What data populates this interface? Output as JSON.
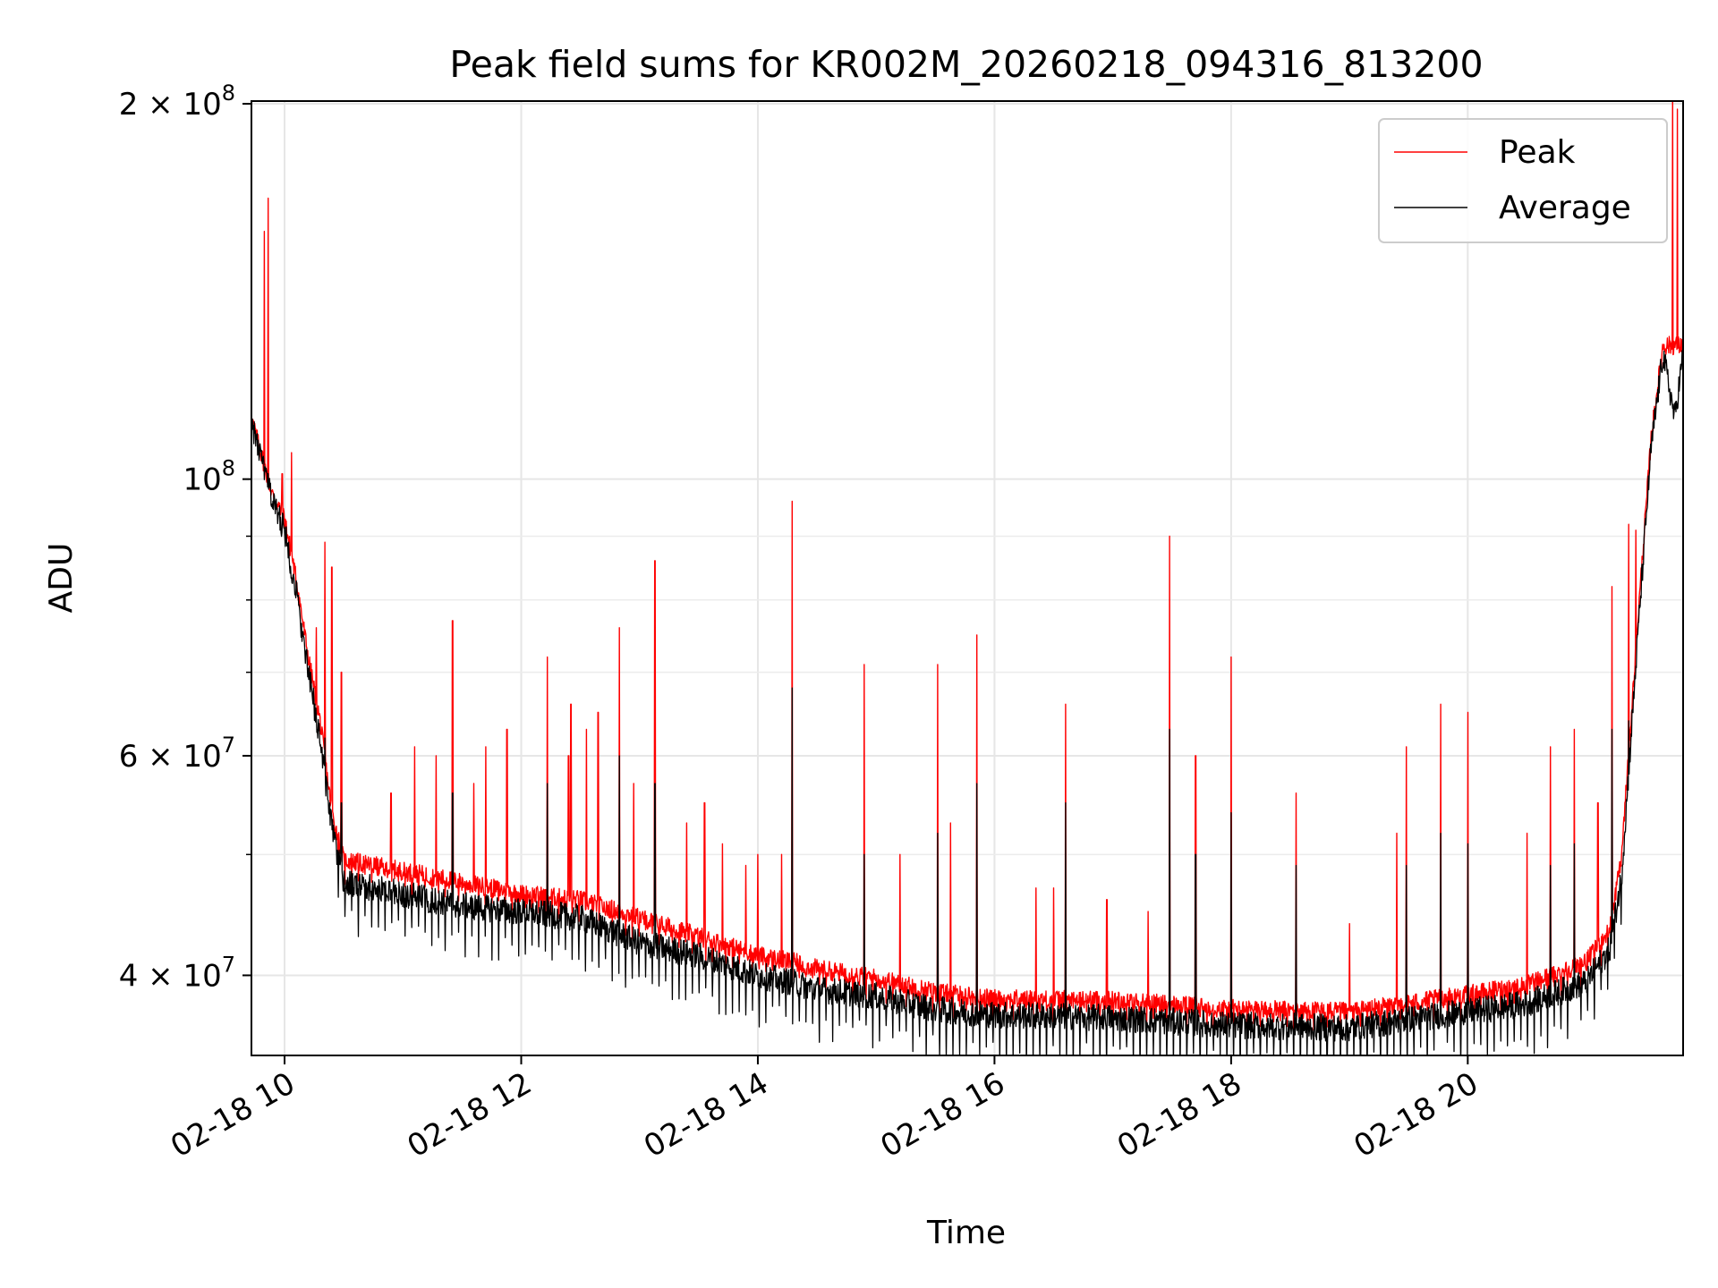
{
  "chart_data": {
    "type": "line",
    "title": "Peak field sums for KR002M_20260218_094316_813200",
    "xlabel": "Time",
    "ylabel": "ADU",
    "yscale": "log",
    "ylim": [
      34500000,
      201000000
    ],
    "xlim_hours": [
      9.72,
      21.82
    ],
    "grid": true,
    "legend_position": "top-right",
    "x_ticks": [
      {
        "hour": 10,
        "label": "02-18 10"
      },
      {
        "hour": 12,
        "label": "02-18 12"
      },
      {
        "hour": 14,
        "label": "02-18 14"
      },
      {
        "hour": 16,
        "label": "02-18 16"
      },
      {
        "hour": 18,
        "label": "02-18 18"
      },
      {
        "hour": 20,
        "label": "02-18 20"
      }
    ],
    "y_ticks": [
      {
        "value": 200000000,
        "base": "2 × 10",
        "exp": "8"
      },
      {
        "value": 100000000,
        "base": "10",
        "exp": "8"
      },
      {
        "value": 60000000,
        "base": "6 × 10",
        "exp": "7"
      },
      {
        "value": 40000000,
        "base": "4 × 10",
        "exp": "7"
      }
    ],
    "y_minor_ticks": [
      50000000,
      70000000,
      80000000,
      90000000
    ],
    "series": [
      {
        "name": "Peak",
        "color": "#ff0000",
        "baseline": [
          [
            9.72,
            112000000
          ],
          [
            9.8,
            105000000
          ],
          [
            9.9,
            97000000
          ],
          [
            10.0,
            93000000
          ],
          [
            10.1,
            83000000
          ],
          [
            10.2,
            72000000
          ],
          [
            10.3,
            64000000
          ],
          [
            10.4,
            54000000
          ],
          [
            10.5,
            49500000
          ],
          [
            11.0,
            48500000
          ],
          [
            11.5,
            47500000
          ],
          [
            12.0,
            46500000
          ],
          [
            12.5,
            46000000
          ],
          [
            13.0,
            44500000
          ],
          [
            13.5,
            43000000
          ],
          [
            14.0,
            41500000
          ],
          [
            14.3,
            41000000
          ],
          [
            14.5,
            40500000
          ],
          [
            15.0,
            39800000
          ],
          [
            15.5,
            38800000
          ],
          [
            16.0,
            38300000
          ],
          [
            17.0,
            38200000
          ],
          [
            18.0,
            37600000
          ],
          [
            19.0,
            37400000
          ],
          [
            19.5,
            38000000
          ],
          [
            20.0,
            38600000
          ],
          [
            20.5,
            39300000
          ],
          [
            21.0,
            41000000
          ],
          [
            21.2,
            43500000
          ],
          [
            21.3,
            50000000
          ],
          [
            21.45,
            80000000
          ],
          [
            21.55,
            108000000
          ],
          [
            21.65,
            128000000
          ],
          [
            21.75,
            128000000
          ],
          [
            21.82,
            128000000
          ]
        ],
        "spikes": [
          [
            9.83,
            158000000
          ],
          [
            9.86,
            168000000
          ],
          [
            9.98,
            101000000
          ],
          [
            10.06,
            105000000
          ],
          [
            10.27,
            76000000
          ],
          [
            10.34,
            89000000
          ],
          [
            10.4,
            85000000
          ],
          [
            10.48,
            70000000
          ],
          [
            10.9,
            56000000
          ],
          [
            11.1,
            61000000
          ],
          [
            11.28,
            60000000
          ],
          [
            11.42,
            77000000
          ],
          [
            11.6,
            57000000
          ],
          [
            11.7,
            61000000
          ],
          [
            11.88,
            63000000
          ],
          [
            12.22,
            72000000
          ],
          [
            12.4,
            60000000
          ],
          [
            12.42,
            66000000
          ],
          [
            12.55,
            63000000
          ],
          [
            12.65,
            65000000
          ],
          [
            12.83,
            76000000
          ],
          [
            12.95,
            57000000
          ],
          [
            13.13,
            86000000
          ],
          [
            13.4,
            53000000
          ],
          [
            13.55,
            55000000
          ],
          [
            13.7,
            51000000
          ],
          [
            13.9,
            49000000
          ],
          [
            14.0,
            50000000
          ],
          [
            14.2,
            50000000
          ],
          [
            14.29,
            96000000
          ],
          [
            14.9,
            71000000
          ],
          [
            15.2,
            50000000
          ],
          [
            15.52,
            71000000
          ],
          [
            15.63,
            53000000
          ],
          [
            15.85,
            75000000
          ],
          [
            16.35,
            47000000
          ],
          [
            16.5,
            47000000
          ],
          [
            16.6,
            66000000
          ],
          [
            16.95,
            46000000
          ],
          [
            17.3,
            45000000
          ],
          [
            17.48,
            90000000
          ],
          [
            17.7,
            60000000
          ],
          [
            18.0,
            72000000
          ],
          [
            18.55,
            56000000
          ],
          [
            19.0,
            44000000
          ],
          [
            19.4,
            52000000
          ],
          [
            19.48,
            61000000
          ],
          [
            19.77,
            66000000
          ],
          [
            20.0,
            65000000
          ],
          [
            20.5,
            52000000
          ],
          [
            20.7,
            61000000
          ],
          [
            20.9,
            63000000
          ],
          [
            21.1,
            55000000
          ],
          [
            21.22,
            82000000
          ],
          [
            21.36,
            92000000
          ],
          [
            21.42,
            91000000
          ],
          [
            21.73,
            205000000
          ],
          [
            21.77,
            198000000
          ]
        ]
      },
      {
        "name": "Average",
        "color": "#000000",
        "baseline": [
          [
            9.72,
            111000000
          ],
          [
            9.8,
            104000000
          ],
          [
            9.9,
            96000000
          ],
          [
            10.0,
            91000000
          ],
          [
            10.1,
            81000000
          ],
          [
            10.2,
            70000000
          ],
          [
            10.3,
            62000000
          ],
          [
            10.4,
            52500000
          ],
          [
            10.5,
            47500000
          ],
          [
            11.0,
            46500000
          ],
          [
            11.5,
            45500000
          ],
          [
            12.0,
            45000000
          ],
          [
            12.5,
            44500000
          ],
          [
            13.0,
            42500000
          ],
          [
            13.5,
            41500000
          ],
          [
            14.0,
            40000000
          ],
          [
            14.3,
            39500000
          ],
          [
            14.5,
            39000000
          ],
          [
            15.0,
            38500000
          ],
          [
            15.5,
            37600000
          ],
          [
            16.0,
            37200000
          ],
          [
            17.0,
            37000000
          ],
          [
            18.0,
            36500000
          ],
          [
            19.0,
            36300000
          ],
          [
            19.5,
            36900000
          ],
          [
            20.0,
            37400000
          ],
          [
            20.5,
            38000000
          ],
          [
            21.0,
            39500000
          ],
          [
            21.2,
            42000000
          ],
          [
            21.3,
            48000000
          ],
          [
            21.45,
            78000000
          ],
          [
            21.55,
            106000000
          ],
          [
            21.65,
            126000000
          ],
          [
            21.75,
            112000000
          ],
          [
            21.82,
            126000000
          ]
        ],
        "spikes": [
          [
            10.34,
            62000000
          ],
          [
            10.48,
            55000000
          ],
          [
            11.42,
            56000000
          ],
          [
            12.22,
            57000000
          ],
          [
            12.83,
            60000000
          ],
          [
            13.13,
            57000000
          ],
          [
            14.29,
            68000000
          ],
          [
            14.9,
            50000000
          ],
          [
            15.52,
            52000000
          ],
          [
            15.85,
            57000000
          ],
          [
            16.6,
            55000000
          ],
          [
            17.48,
            63000000
          ],
          [
            17.7,
            50000000
          ],
          [
            18.0,
            54000000
          ],
          [
            18.55,
            49000000
          ],
          [
            19.48,
            49000000
          ],
          [
            19.77,
            52000000
          ],
          [
            20.0,
            51000000
          ],
          [
            20.7,
            49000000
          ],
          [
            20.9,
            51000000
          ],
          [
            21.22,
            63000000
          ],
          [
            21.36,
            64000000
          ],
          [
            21.42,
            66000000
          ]
        ]
      }
    ]
  }
}
